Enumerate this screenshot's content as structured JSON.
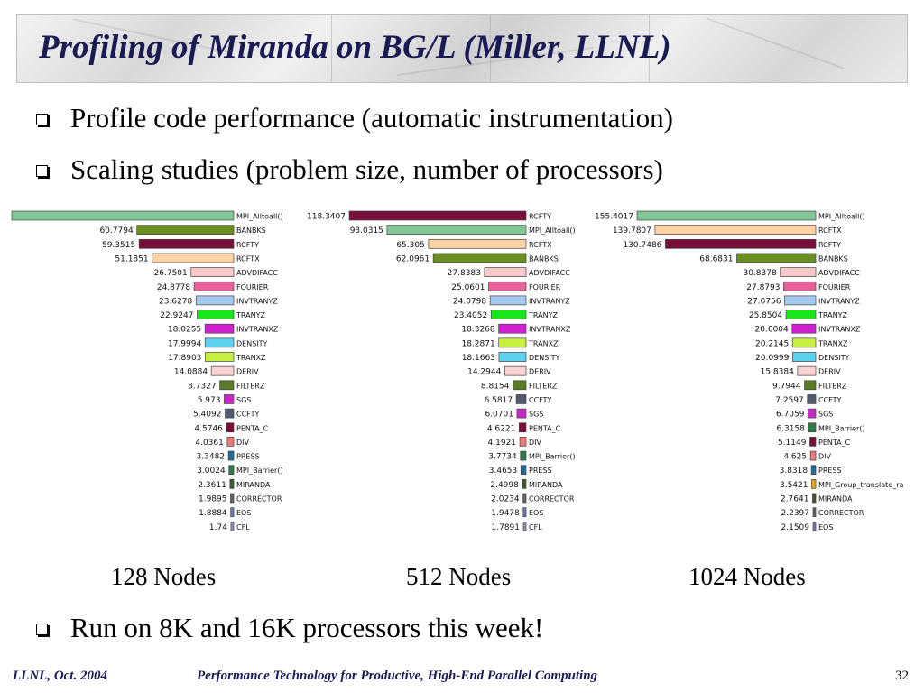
{
  "slide": {
    "title": "Profiling of Miranda on BG/L (Miller, LLNL)",
    "bullets": [
      "Profile code performance (automatic instrumentation)",
      "Scaling studies (problem size, number of processors)",
      "Run on 8K and 16K processors this week!"
    ],
    "footer_left": "LLNL, Oct. 2004",
    "footer_center": "Performance Technology for Productive, High-End Parallel Computing",
    "page_number": "32"
  },
  "chart_data": [
    {
      "type": "bar",
      "caption": "128 Nodes",
      "max": 139.3191,
      "bars": [
        {
          "name": "MPI_Alltoall()",
          "value": "139.3191",
          "color": "#82c896"
        },
        {
          "name": "BANBKS",
          "value": "60.7794",
          "color": "#6b8e23"
        },
        {
          "name": "RCFTY",
          "value": "59.3515",
          "color": "#7a0f3c"
        },
        {
          "name": "RCFTX",
          "value": "51.1851",
          "color": "#ffd2a6"
        },
        {
          "name": "ADVDIFACC",
          "value": "26.7501",
          "color": "#f8c8c8"
        },
        {
          "name": "FOURIER",
          "value": "24.8778",
          "color": "#e8609a"
        },
        {
          "name": "INVTRANYZ",
          "value": "23.6278",
          "color": "#a4c8f0"
        },
        {
          "name": "TRANYZ",
          "value": "22.9247",
          "color": "#19e619"
        },
        {
          "name": "INVTRANXZ",
          "value": "18.0255",
          "color": "#d21ed2"
        },
        {
          "name": "DENSITY",
          "value": "17.9994",
          "color": "#5ad2f0"
        },
        {
          "name": "TRANXZ",
          "value": "17.8903",
          "color": "#c8f040"
        },
        {
          "name": "DERIV",
          "value": "14.0884",
          "color": "#fad2d2"
        },
        {
          "name": "FILTERZ",
          "value": "8.7327",
          "color": "#5a7a28"
        },
        {
          "name": "SGS",
          "value": "5.973",
          "color": "#c828c8"
        },
        {
          "name": "CCFTY",
          "value": "5.4092",
          "color": "#505a6e"
        },
        {
          "name": "PENTA_C",
          "value": "4.5746",
          "color": "#7a0f3c"
        },
        {
          "name": "DIV",
          "value": "4.0361",
          "color": "#f07878"
        },
        {
          "name": "PRESS",
          "value": "3.3482",
          "color": "#1e6e9a"
        },
        {
          "name": "MPI_Barrier()",
          "value": "3.0024",
          "color": "#2e7d4a"
        },
        {
          "name": "MIRANDA",
          "value": "2.3611",
          "color": "#3a5a2a"
        },
        {
          "name": "CORRECTOR",
          "value": "1.9895",
          "color": "#5a646e"
        },
        {
          "name": "EOS",
          "value": "1.8884",
          "color": "#6e7ab4"
        },
        {
          "name": "CFL",
          "value": "1.74",
          "color": "#8c96b4"
        }
      ]
    },
    {
      "type": "bar",
      "caption": "512 Nodes",
      "max": 118.3407,
      "bars": [
        {
          "name": "RCFTY",
          "value": "118.3407",
          "color": "#7a0f3c"
        },
        {
          "name": "MPI_Alltoall()",
          "value": "93.0315",
          "color": "#82c896"
        },
        {
          "name": "RCFTX",
          "value": "65.305",
          "color": "#ffd2a6"
        },
        {
          "name": "BANBKS",
          "value": "62.0961",
          "color": "#6b8e23"
        },
        {
          "name": "ADVDIFACC",
          "value": "27.8383",
          "color": "#f8c8c8"
        },
        {
          "name": "FOURIER",
          "value": "25.0601",
          "color": "#e8609a"
        },
        {
          "name": "INVTRANYZ",
          "value": "24.0798",
          "color": "#a4c8f0"
        },
        {
          "name": "TRANYZ",
          "value": "23.4052",
          "color": "#19e619"
        },
        {
          "name": "INVTRANXZ",
          "value": "18.3268",
          "color": "#d21ed2"
        },
        {
          "name": "TRANXZ",
          "value": "18.2871",
          "color": "#c8f040"
        },
        {
          "name": "DENSITY",
          "value": "18.1663",
          "color": "#5ad2f0"
        },
        {
          "name": "DERIV",
          "value": "14.2944",
          "color": "#fad2d2"
        },
        {
          "name": "FILTERZ",
          "value": "8.8154",
          "color": "#5a7a28"
        },
        {
          "name": "CCFTY",
          "value": "6.5817",
          "color": "#505a6e"
        },
        {
          "name": "SGS",
          "value": "6.0701",
          "color": "#c828c8"
        },
        {
          "name": "PENTA_C",
          "value": "4.6221",
          "color": "#7a0f3c"
        },
        {
          "name": "DIV",
          "value": "4.1921",
          "color": "#f07878"
        },
        {
          "name": "MPI_Barrier()",
          "value": "3.7734",
          "color": "#2e7d4a"
        },
        {
          "name": "PRESS",
          "value": "3.4653",
          "color": "#1e6e9a"
        },
        {
          "name": "MIRANDA",
          "value": "2.4998",
          "color": "#3a5a2a"
        },
        {
          "name": "CORRECTOR",
          "value": "2.0234",
          "color": "#5a646e"
        },
        {
          "name": "EOS",
          "value": "1.9478",
          "color": "#6e7ab4"
        },
        {
          "name": "CFL",
          "value": "1.7891",
          "color": "#8c96b4"
        }
      ]
    },
    {
      "type": "bar",
      "caption": "1024 Nodes",
      "max": 155.4017,
      "bars": [
        {
          "name": "MPI_Alltoall()",
          "value": "155.4017",
          "color": "#82c896"
        },
        {
          "name": "RCFTX",
          "value": "139.7807",
          "color": "#ffd2a6"
        },
        {
          "name": "RCFTY",
          "value": "130.7486",
          "color": "#7a0f3c"
        },
        {
          "name": "BANBKS",
          "value": "68.6831",
          "color": "#6b8e23"
        },
        {
          "name": "ADVDIFACC",
          "value": "30.8378",
          "color": "#f8c8c8"
        },
        {
          "name": "FOURIER",
          "value": "27.8793",
          "color": "#e8609a"
        },
        {
          "name": "INVTRANYZ",
          "value": "27.0756",
          "color": "#a4c8f0"
        },
        {
          "name": "TRANYZ",
          "value": "25.8504",
          "color": "#19e619"
        },
        {
          "name": "INVTRANXZ",
          "value": "20.6004",
          "color": "#d21ed2"
        },
        {
          "name": "TRANXZ",
          "value": "20.2145",
          "color": "#c8f040"
        },
        {
          "name": "DENSITY",
          "value": "20.0999",
          "color": "#5ad2f0"
        },
        {
          "name": "DERIV",
          "value": "15.8384",
          "color": "#fad2d2"
        },
        {
          "name": "FILTERZ",
          "value": "9.7944",
          "color": "#5a7a28"
        },
        {
          "name": "CCFTY",
          "value": "7.2597",
          "color": "#505a6e"
        },
        {
          "name": "SGS",
          "value": "6.7059",
          "color": "#c828c8"
        },
        {
          "name": "MPI_Barrier()",
          "value": "6.3158",
          "color": "#2e7d4a"
        },
        {
          "name": "PENTA_C",
          "value": "5.1149",
          "color": "#7a0f3c"
        },
        {
          "name": "DIV",
          "value": "4.625",
          "color": "#f07878"
        },
        {
          "name": "PRESS",
          "value": "3.8318",
          "color": "#1e6e9a"
        },
        {
          "name": "MPI_Group_translate_ra",
          "value": "3.5421",
          "color": "#f0a020"
        },
        {
          "name": "MIRANDA",
          "value": "2.7641",
          "color": "#3a5a2a"
        },
        {
          "name": "CORRECTOR",
          "value": "2.2397",
          "color": "#5a646e"
        },
        {
          "name": "EOS",
          "value": "2.1509",
          "color": "#6e7ab4"
        }
      ]
    }
  ]
}
